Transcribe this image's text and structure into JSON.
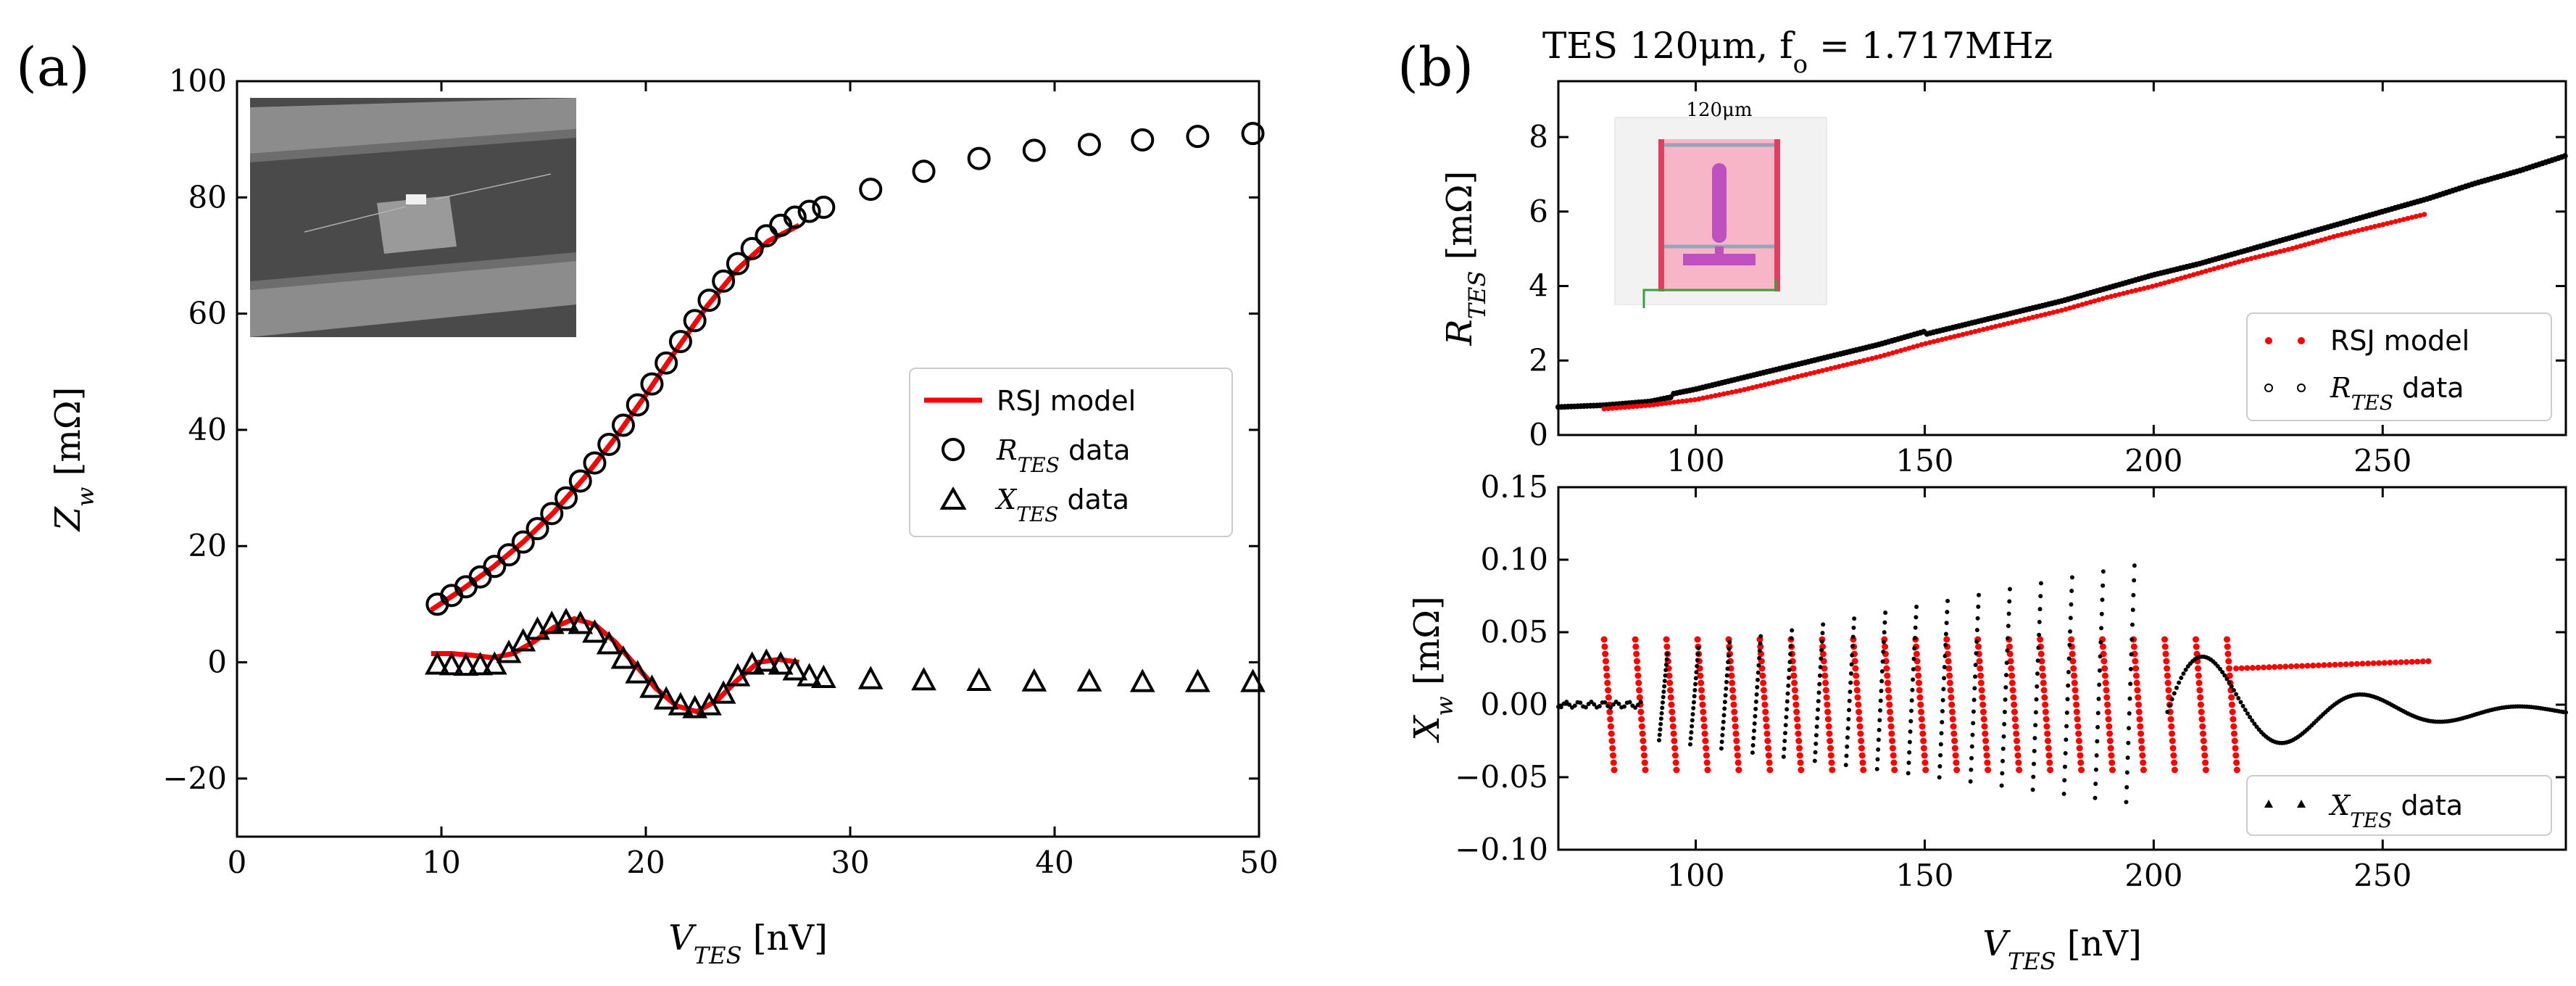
{
  "figure": {
    "panel_a_label": "(a)",
    "panel_b_label": "(b)",
    "panel_b_title": "TES 120μm, f",
    "panel_b_title_sub": "o",
    "panel_b_title_tail": " = 1.717MHz",
    "inset_label": "120μm"
  },
  "colors": {
    "model": "#ff0000",
    "data": "#000000",
    "pink": "#f7b6c8",
    "magenta": "#c050c0"
  },
  "chart_data": [
    {
      "id": "a",
      "type": "scatter",
      "title": "",
      "xlabel_main": "V",
      "xlabel_sub": "TES",
      "xlabel_unit": " [nV]",
      "ylabel_main": "Z",
      "ylabel_sub": "w",
      "ylabel_unit": " [mΩ]",
      "xlim": [
        0,
        50
      ],
      "ylim": [
        -30,
        100
      ],
      "xticks": [
        0,
        10,
        20,
        30,
        40,
        50
      ],
      "yticks": [
        -20,
        0,
        20,
        40,
        60,
        80,
        100
      ],
      "ytick_labels": [
        "−20",
        "0",
        "20",
        "40",
        "60",
        "80",
        "100"
      ],
      "legend": [
        {
          "label": "RSJ model",
          "marker": "line"
        },
        {
          "label": "R",
          "sub": "TES",
          "tail": " data",
          "marker": "circle"
        },
        {
          "label": "X",
          "sub": "TES",
          "tail": " data",
          "marker": "triangle"
        }
      ],
      "series": [
        {
          "name": "RTES data",
          "marker": "circle",
          "x": [
            9.8,
            10.5,
            11.2,
            11.9,
            12.6,
            13.3,
            14.0,
            14.7,
            15.4,
            16.1,
            16.8,
            17.5,
            18.2,
            18.9,
            19.6,
            20.3,
            21.0,
            21.7,
            22.4,
            23.1,
            23.8,
            24.5,
            25.2,
            25.9,
            26.6,
            27.3,
            28.0,
            28.7,
            31.0,
            33.6,
            36.3,
            39.0,
            41.7,
            44.3,
            47.0,
            49.7
          ],
          "y": [
            10,
            11.5,
            13,
            14.7,
            16.5,
            18.5,
            20.7,
            23,
            25.6,
            28.3,
            31.2,
            34.3,
            37.5,
            40.8,
            44.3,
            47.9,
            51.5,
            55.2,
            58.8,
            62.3,
            65.6,
            68.6,
            71.2,
            73.4,
            75.2,
            76.6,
            77.6,
            78.3,
            81.4,
            84.5,
            86.7,
            88.1,
            89.1,
            89.9,
            90.5,
            91
          ]
        },
        {
          "name": "XTES data",
          "marker": "triangle",
          "x": [
            9.8,
            10.5,
            11.2,
            11.9,
            12.6,
            13.3,
            14.0,
            14.7,
            15.4,
            16.1,
            16.8,
            17.5,
            18.2,
            18.9,
            19.6,
            20.3,
            21.0,
            21.7,
            22.4,
            23.1,
            23.8,
            24.5,
            25.2,
            25.9,
            26.6,
            27.3,
            28.0,
            28.7,
            31.0,
            33.6,
            36.3,
            39.0,
            41.7,
            44.3,
            47.0,
            49.7
          ],
          "y": [
            -0.5,
            -0.6,
            -0.7,
            -0.6,
            -0.5,
            1.5,
            3.5,
            5.5,
            6.5,
            7,
            6.5,
            5,
            3,
            0.5,
            -2,
            -4.5,
            -6.5,
            -7.5,
            -8,
            -7.5,
            -5.5,
            -2.5,
            -0.5,
            0,
            -0.5,
            -1.5,
            -2.5,
            -2.8,
            -3,
            -3.2,
            -3.3,
            -3.4,
            -3.4,
            -3.5,
            -3.5,
            -3.5
          ]
        },
        {
          "name": "RSJ model R",
          "marker": "line",
          "x": [
            9.5,
            11,
            12.5,
            14,
            15.5,
            17,
            18.5,
            20,
            21.5,
            23,
            24.5,
            26,
            27.5
          ],
          "y": [
            9,
            12.5,
            16.3,
            20.7,
            25.8,
            31.8,
            38.6,
            46,
            53.8,
            61.3,
            67.7,
            72.5,
            75.2
          ]
        },
        {
          "name": "RSJ model X",
          "marker": "line",
          "x": [
            9.5,
            10.5,
            11.5,
            12.5,
            13.5,
            14.5,
            15.5,
            16.5,
            17.5,
            18.5,
            19.5,
            20.5,
            21.5,
            22.5,
            23.5,
            24.5,
            25.5,
            26.5,
            27.5
          ],
          "y": [
            1.5,
            1.5,
            1.2,
            0.8,
            1.5,
            3.5,
            6,
            7.5,
            6.5,
            3.5,
            -0.5,
            -4.5,
            -7.5,
            -8.5,
            -6.5,
            -3,
            0,
            0.5,
            0
          ]
        }
      ]
    },
    {
      "id": "b-top",
      "type": "line",
      "xlabel": "",
      "ylabel_main": "R",
      "ylabel_sub": "TES",
      "ylabel_unit": " [mΩ]",
      "xlim": [
        70,
        290
      ],
      "ylim": [
        0,
        9.5
      ],
      "xticks": [
        100,
        150,
        200,
        250
      ],
      "yticks": [
        0,
        2,
        4,
        6,
        8
      ],
      "legend": [
        {
          "label": "RSJ model",
          "marker": "dot-red"
        },
        {
          "label": "R",
          "sub": "TES",
          "tail": " data",
          "marker": "dot-black"
        }
      ],
      "series": [
        {
          "name": "RTES data",
          "marker": "dense-dots",
          "x": [
            70,
            80,
            90,
            100,
            110,
            120,
            130,
            140,
            150,
            160,
            170,
            180,
            190,
            200,
            210,
            220,
            230,
            240,
            250,
            260,
            270,
            280,
            290
          ],
          "y": [
            0.75,
            0.8,
            0.9,
            1.15,
            1.45,
            1.75,
            2.05,
            2.35,
            2.7,
            3.0,
            3.3,
            3.6,
            3.95,
            4.3,
            4.6,
            4.95,
            5.3,
            5.65,
            6.0,
            6.35,
            6.75,
            7.1,
            7.5
          ]
        },
        {
          "name": "RSJ model",
          "marker": "dense-dots-red",
          "x": [
            80,
            90,
            100,
            110,
            120,
            130,
            140,
            150,
            160,
            170,
            180,
            190,
            200,
            210,
            220,
            230,
            240,
            250,
            260
          ],
          "y": [
            0.7,
            0.8,
            0.95,
            1.2,
            1.5,
            1.8,
            2.1,
            2.45,
            2.75,
            3.05,
            3.35,
            3.7,
            4.0,
            4.35,
            4.7,
            5.0,
            5.35,
            5.65,
            5.95
          ]
        }
      ]
    },
    {
      "id": "b-bottom",
      "type": "scatter",
      "xlabel_main": "V",
      "xlabel_sub": "TES",
      "xlabel_unit": " [nV]",
      "ylabel_main": "X",
      "ylabel_sub": "w",
      "ylabel_unit": " [mΩ]",
      "xlim": [
        70,
        290
      ],
      "ylim": [
        -0.1,
        0.15
      ],
      "xticks": [
        100,
        150,
        200,
        250
      ],
      "yticks": [
        -0.1,
        -0.05,
        0.0,
        0.05,
        0.1,
        0.15
      ],
      "ytick_labels": [
        "−0.10",
        "−0.05",
        "0.00",
        "0.05",
        "0.10",
        "0.15"
      ],
      "legend": [
        {
          "label": "X",
          "sub": "TES",
          "tail": " data",
          "marker": "tri-small"
        }
      ],
      "model_oscillation": {
        "x_start": 80,
        "x_end": 218,
        "period": 6.8,
        "amp": 0.045,
        "after_level": [
          0.025,
          0.03
        ]
      },
      "data_oscillation": {
        "x_start": 92,
        "x_end": 200,
        "period": 6.8,
        "amp_start": 0.035,
        "amp_end": 0.1
      }
    }
  ]
}
